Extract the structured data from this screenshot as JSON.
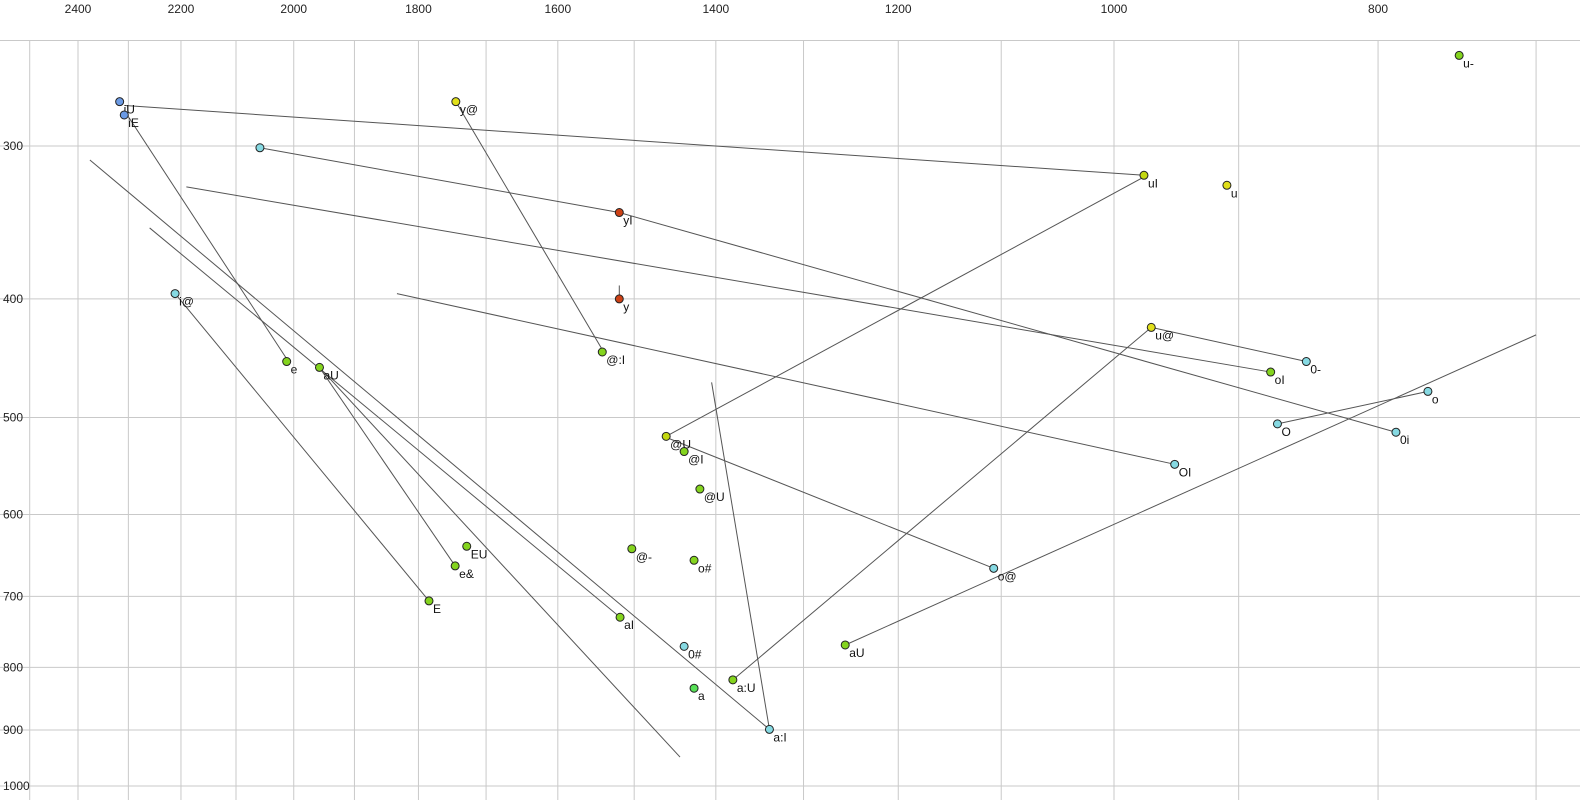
{
  "chart_data": {
    "type": "scatter",
    "title": "",
    "xlabel": "",
    "ylabel": "",
    "x_axis": {
      "scale": "log",
      "reversed": true,
      "ticks": [
        2400,
        2200,
        2000,
        1800,
        1600,
        1400,
        1200,
        1000,
        800
      ],
      "grid_step_hz": 100,
      "grid_from_hz": 2500,
      "grid_to_hz": 700,
      "range_hz": [
        2560,
        690
      ]
    },
    "y_axis": {
      "scale": "log",
      "increases_downward": true,
      "ticks": [
        300,
        400,
        500,
        600,
        700,
        800,
        900,
        1000
      ],
      "grid_step_hz": 100,
      "grid_from_hz": 300,
      "grid_to_hz": 1000,
      "range_hz": [
        245,
        1030
      ]
    },
    "grid": true,
    "legend": "none",
    "colors": {
      "green": "#84d41e",
      "mint": "#57e057",
      "cyan": "#86d9e2",
      "yellow": "#e0df1a",
      "yellow_green": "#c3d810",
      "red": "#cd4115",
      "blue": "#6b9ae4",
      "grid": "#c9c9c9",
      "line": "#555555",
      "dot_stroke": "#222222"
    },
    "points": [
      {
        "label": "u-",
        "f2": 747,
        "f1": 253,
        "color": "green"
      },
      {
        "label": "iU",
        "f2": 2317,
        "f1": 276,
        "color": "blue"
      },
      {
        "label": "iE",
        "f2": 2308,
        "f1": 283,
        "color": "blue"
      },
      {
        "label": "y@",
        "f2": 1744,
        "f1": 276,
        "color": "yellow"
      },
      {
        "label": "",
        "f2": 2058,
        "f1": 301,
        "color": "cyan"
      },
      {
        "label": "uI",
        "f2": 975,
        "f1": 317,
        "color": "yellow_green"
      },
      {
        "label": "u",
        "f2": 909,
        "f1": 323,
        "color": "yellow"
      },
      {
        "label": "yI",
        "f2": 1519,
        "f1": 340,
        "color": "red"
      },
      {
        "label": "i@",
        "f2": 2211,
        "f1": 396,
        "color": "cyan"
      },
      {
        "label": "y",
        "f2": 1519,
        "f1": 400,
        "color": "red"
      },
      {
        "label": "u@",
        "f2": 969,
        "f1": 422,
        "color": "yellow"
      },
      {
        "label": "@:I",
        "f2": 1541,
        "f1": 442,
        "color": "green"
      },
      {
        "label": "e",
        "f2": 2012,
        "f1": 450,
        "color": "green"
      },
      {
        "label": "aU",
        "f2": 1957,
        "f1": 455,
        "color": "green"
      },
      {
        "label": "0-",
        "f2": 850,
        "f1": 450,
        "color": "cyan"
      },
      {
        "label": "oI",
        "f2": 876,
        "f1": 459,
        "color": "green"
      },
      {
        "label": "o",
        "f2": 767,
        "f1": 476,
        "color": "cyan"
      },
      {
        "label": "O",
        "f2": 871,
        "f1": 506,
        "color": "cyan"
      },
      {
        "label": "0i",
        "f2": 788,
        "f1": 514,
        "color": "cyan"
      },
      {
        "label": "OI",
        "f2": 950,
        "f1": 546,
        "color": "cyan"
      },
      {
        "label": "@U",
        "f2": 1460,
        "f1": 518,
        "color": "yellow_green"
      },
      {
        "label": "@I",
        "f2": 1438,
        "f1": 533,
        "color": "green"
      },
      {
        "label": "@U",
        "f2": 1419,
        "f1": 572,
        "color": "green"
      },
      {
        "label": "EU",
        "f2": 1728,
        "f1": 637,
        "color": "green"
      },
      {
        "label": "@-",
        "f2": 1503,
        "f1": 640,
        "color": "green"
      },
      {
        "label": "o#",
        "f2": 1426,
        "f1": 654,
        "color": "green"
      },
      {
        "label": "e&",
        "f2": 1745,
        "f1": 661,
        "color": "green"
      },
      {
        "label": "o@",
        "f2": 1107,
        "f1": 664,
        "color": "cyan"
      },
      {
        "label": "E",
        "f2": 1784,
        "f1": 706,
        "color": "green"
      },
      {
        "label": "aI",
        "f2": 1518,
        "f1": 728,
        "color": "green"
      },
      {
        "label": "0#",
        "f2": 1438,
        "f1": 769,
        "color": "cyan"
      },
      {
        "label": "aU",
        "f2": 1255,
        "f1": 767,
        "color": "green"
      },
      {
        "label": "a:U",
        "f2": 1380,
        "f1": 819,
        "color": "green"
      },
      {
        "label": "a",
        "f2": 1426,
        "f1": 832,
        "color": "mint"
      },
      {
        "label": "a:I",
        "f2": 1338,
        "f1": 899,
        "color": "cyan"
      }
    ],
    "trajectories": [
      {
        "from": [
          2307,
          278
        ],
        "to": [
          975,
          317
        ]
      },
      {
        "from": [
          2307,
          281
        ],
        "to": [
          2009,
          450
        ]
      },
      {
        "from": [
          2058,
          301
        ],
        "to": [
          1519,
          340
        ]
      },
      {
        "from": [
          1744,
          276
        ],
        "to": [
          1541,
          440
        ]
      },
      {
        "from": [
          1519,
          390
        ],
        "to": [
          1519,
          399
        ]
      },
      {
        "from": [
          2190,
          324
        ],
        "to": [
          876,
          459
        ]
      },
      {
        "from": [
          1833,
          396
        ],
        "to": [
          950,
          546
        ]
      },
      {
        "from": [
          2376,
          308
        ],
        "to": [
          1338,
          899
        ]
      },
      {
        "from": [
          2259,
          350
        ],
        "to": [
          1518,
          728
        ]
      },
      {
        "from": [
          1380,
          819
        ],
        "to": [
          969,
          422
        ]
      },
      {
        "from": [
          1255,
          767
        ],
        "to": [
          700,
          428
        ]
      },
      {
        "from": [
          1107,
          664
        ],
        "to": [
          1460,
          519
        ]
      },
      {
        "from": [
          1405,
          468
        ],
        "to": [
          1338,
          899
        ]
      },
      {
        "from": [
          969,
          422
        ],
        "to": [
          850,
          450
        ]
      },
      {
        "from": [
          767,
          476
        ],
        "to": [
          871,
          506
        ]
      },
      {
        "from": [
          1957,
          455
        ],
        "to": [
          1443,
          947
        ]
      },
      {
        "from": [
          2211,
          396
        ],
        "to": [
          1784,
          706
        ]
      },
      {
        "from": [
          1460,
          518
        ],
        "to": [
          975,
          318
        ]
      },
      {
        "from": [
          788,
          514
        ],
        "to": [
          1519,
          340
        ]
      },
      {
        "from": [
          1957,
          455
        ],
        "to": [
          1745,
          661
        ]
      }
    ]
  }
}
